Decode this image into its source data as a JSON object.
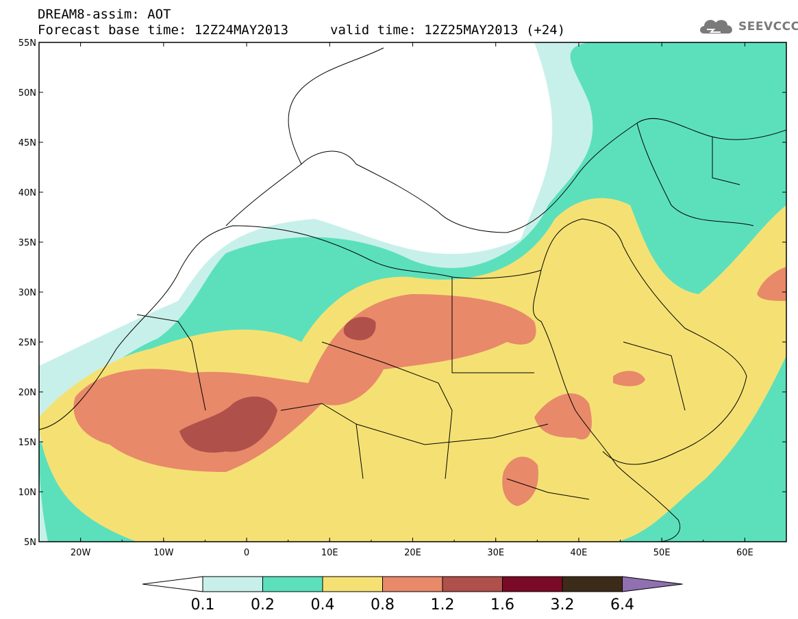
{
  "header": {
    "line1": "DREAM8-assim: AOT",
    "base_time": "Forecast base time: 12Z24MAY2013",
    "valid_time": "valid time: 12Z25MAY2013 (+24)"
  },
  "logo": {
    "text": "SEEVCCC",
    "icon": "cloud-icon"
  },
  "map": {
    "lon_range": [
      -25,
      65
    ],
    "lat_range": [
      5,
      55
    ],
    "lat_ticks": [
      "5N",
      "10N",
      "15N",
      "20N",
      "25N",
      "30N",
      "35N",
      "40N",
      "45N",
      "50N",
      "55N"
    ],
    "lon_ticks": [
      "20W",
      "10W",
      "0",
      "10E",
      "20E",
      "30E",
      "40E",
      "50E",
      "60E"
    ]
  },
  "colorbar": {
    "labels": [
      "0.1",
      "0.2",
      "0.4",
      "0.8",
      "1.2",
      "1.6",
      "3.2",
      "6.4"
    ],
    "colors": [
      "#c8f0ea",
      "#5ce0bc",
      "#f5e173",
      "#e8896a",
      "#b0504a",
      "#7a0a25",
      "#3d2b1a",
      "#9070b0"
    ],
    "under_color": "#ffffff"
  }
}
